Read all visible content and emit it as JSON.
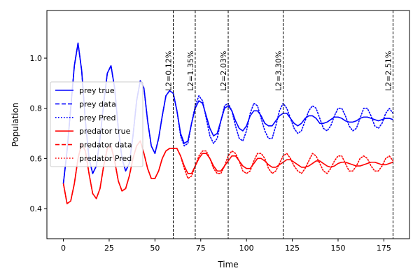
{
  "chart_data": {
    "type": "line",
    "title": "",
    "xlabel": "Time",
    "ylabel": "Population",
    "xlim": [
      -9,
      189
    ],
    "ylim": [
      0.28,
      1.19
    ],
    "xticks": [
      0,
      25,
      50,
      75,
      100,
      125,
      150,
      175
    ],
    "yticks": [
      0.4,
      0.6,
      0.8,
      1.0
    ],
    "xtick_labels": [
      "0",
      "25",
      "50",
      "75",
      "100",
      "125",
      "150",
      "175"
    ],
    "ytick_labels": [
      "0.4",
      "0.6",
      "0.8",
      "1.0"
    ],
    "legend_position": "center-left",
    "series": [
      {
        "name": "prey true",
        "color": "#0000ff",
        "style": "solid",
        "x": [
          0,
          2,
          4,
          6,
          8,
          10,
          12,
          14,
          16,
          18,
          20,
          22,
          24,
          26,
          28,
          30,
          32,
          34,
          36,
          38,
          40,
          42,
          44,
          46,
          48,
          50,
          52,
          54,
          56,
          58,
          60,
          62,
          64,
          66,
          68,
          70,
          72,
          74,
          76,
          78,
          80,
          82,
          84,
          86,
          88,
          90,
          92,
          94,
          96,
          98,
          100,
          102,
          104,
          106,
          108,
          110,
          112,
          114,
          116,
          118,
          120,
          122,
          124,
          126,
          128,
          130,
          132,
          134,
          136,
          138,
          140,
          142,
          144,
          146,
          148,
          150,
          152,
          154,
          156,
          158,
          160,
          162,
          164,
          166,
          168,
          170,
          172,
          174,
          176,
          178,
          180
        ],
        "y": [
          0.5,
          0.63,
          0.8,
          0.97,
          1.06,
          0.95,
          0.75,
          0.6,
          0.54,
          0.57,
          0.68,
          0.82,
          0.94,
          0.97,
          0.88,
          0.72,
          0.6,
          0.55,
          0.58,
          0.69,
          0.83,
          0.91,
          0.88,
          0.75,
          0.65,
          0.62,
          0.68,
          0.77,
          0.85,
          0.87,
          0.86,
          0.79,
          0.7,
          0.66,
          0.67,
          0.74,
          0.8,
          0.83,
          0.82,
          0.77,
          0.72,
          0.69,
          0.7,
          0.75,
          0.8,
          0.81,
          0.79,
          0.75,
          0.72,
          0.71,
          0.73,
          0.77,
          0.79,
          0.79,
          0.77,
          0.74,
          0.73,
          0.73,
          0.75,
          0.77,
          0.78,
          0.78,
          0.76,
          0.74,
          0.73,
          0.74,
          0.76,
          0.77,
          0.77,
          0.76,
          0.74,
          0.74,
          0.745,
          0.755,
          0.765,
          0.765,
          0.76,
          0.75,
          0.745,
          0.745,
          0.75,
          0.76,
          0.765,
          0.765,
          0.76,
          0.755,
          0.75,
          0.755,
          0.76,
          0.76,
          0.755
        ]
      },
      {
        "name": "prey data",
        "color": "#0000ff",
        "style": "dashed",
        "x": [
          0,
          2,
          4,
          6,
          8,
          10,
          12,
          14,
          16,
          18,
          20,
          22,
          24,
          26,
          28,
          30,
          32,
          34,
          36,
          38,
          40,
          42,
          44,
          46,
          48,
          50,
          52,
          54,
          56,
          58,
          60
        ],
        "y": [
          0.5,
          0.63,
          0.8,
          0.97,
          1.06,
          0.95,
          0.75,
          0.6,
          0.54,
          0.57,
          0.68,
          0.82,
          0.94,
          0.97,
          0.88,
          0.72,
          0.6,
          0.55,
          0.58,
          0.69,
          0.83,
          0.91,
          0.88,
          0.75,
          0.65,
          0.62,
          0.68,
          0.77,
          0.85,
          0.87,
          0.86
        ]
      },
      {
        "name": "prey Pred",
        "color": "#0000ff",
        "style": "dotted",
        "x": [
          60,
          62,
          64,
          66,
          68,
          70,
          72,
          74,
          76,
          78,
          80,
          82,
          84,
          86,
          88,
          90,
          92,
          94,
          96,
          98,
          100,
          102,
          104,
          106,
          108,
          110,
          112,
          114,
          116,
          118,
          120,
          122,
          124,
          126,
          128,
          130,
          132,
          134,
          136,
          138,
          140,
          142,
          144,
          146,
          148,
          150,
          152,
          154,
          156,
          158,
          160,
          162,
          164,
          166,
          168,
          170,
          172,
          174,
          176,
          178,
          180
        ],
        "y": [
          0.86,
          0.79,
          0.69,
          0.65,
          0.66,
          0.74,
          0.81,
          0.85,
          0.83,
          0.76,
          0.69,
          0.66,
          0.68,
          0.75,
          0.81,
          0.82,
          0.79,
          0.73,
          0.68,
          0.67,
          0.71,
          0.78,
          0.82,
          0.81,
          0.76,
          0.71,
          0.68,
          0.68,
          0.73,
          0.79,
          0.82,
          0.8,
          0.76,
          0.72,
          0.7,
          0.71,
          0.75,
          0.79,
          0.81,
          0.8,
          0.76,
          0.72,
          0.71,
          0.73,
          0.77,
          0.8,
          0.8,
          0.77,
          0.73,
          0.71,
          0.72,
          0.76,
          0.8,
          0.8,
          0.77,
          0.73,
          0.72,
          0.74,
          0.78,
          0.8,
          0.78
        ]
      },
      {
        "name": "predator true",
        "color": "#ff0000",
        "style": "solid",
        "x": [
          0,
          2,
          4,
          6,
          8,
          10,
          12,
          14,
          16,
          18,
          20,
          22,
          24,
          26,
          28,
          30,
          32,
          34,
          36,
          38,
          40,
          42,
          44,
          46,
          48,
          50,
          52,
          54,
          56,
          58,
          60,
          62,
          64,
          66,
          68,
          70,
          72,
          74,
          76,
          78,
          80,
          82,
          84,
          86,
          88,
          90,
          92,
          94,
          96,
          98,
          100,
          102,
          104,
          106,
          108,
          110,
          112,
          114,
          116,
          118,
          120,
          122,
          124,
          126,
          128,
          130,
          132,
          134,
          136,
          138,
          140,
          142,
          144,
          146,
          148,
          150,
          152,
          154,
          156,
          158,
          160,
          162,
          164,
          166,
          168,
          170,
          172,
          174,
          176,
          178,
          180
        ],
        "y": [
          0.5,
          0.42,
          0.43,
          0.5,
          0.6,
          0.66,
          0.63,
          0.54,
          0.46,
          0.44,
          0.48,
          0.57,
          0.64,
          0.65,
          0.59,
          0.51,
          0.47,
          0.48,
          0.53,
          0.6,
          0.65,
          0.67,
          0.62,
          0.56,
          0.52,
          0.52,
          0.55,
          0.6,
          0.63,
          0.64,
          0.64,
          0.64,
          0.61,
          0.57,
          0.54,
          0.54,
          0.57,
          0.6,
          0.62,
          0.62,
          0.6,
          0.57,
          0.55,
          0.55,
          0.57,
          0.59,
          0.61,
          0.61,
          0.59,
          0.57,
          0.56,
          0.56,
          0.58,
          0.6,
          0.6,
          0.59,
          0.575,
          0.565,
          0.565,
          0.575,
          0.585,
          0.595,
          0.595,
          0.585,
          0.575,
          0.565,
          0.565,
          0.57,
          0.58,
          0.59,
          0.59,
          0.58,
          0.57,
          0.565,
          0.57,
          0.58,
          0.585,
          0.585,
          0.58,
          0.575,
          0.57,
          0.57,
          0.575,
          0.58,
          0.585,
          0.585,
          0.58,
          0.575,
          0.575,
          0.58,
          0.585
        ]
      },
      {
        "name": "predator data",
        "color": "#ff0000",
        "style": "dashed",
        "x": [
          0,
          2,
          4,
          6,
          8,
          10,
          12,
          14,
          16,
          18,
          20,
          22,
          24,
          26,
          28,
          30,
          32,
          34,
          36,
          38,
          40,
          42,
          44,
          46,
          48,
          50,
          52,
          54,
          56,
          58,
          60
        ],
        "y": [
          0.5,
          0.42,
          0.43,
          0.5,
          0.6,
          0.66,
          0.63,
          0.54,
          0.46,
          0.44,
          0.48,
          0.57,
          0.64,
          0.65,
          0.59,
          0.51,
          0.47,
          0.48,
          0.53,
          0.6,
          0.65,
          0.67,
          0.62,
          0.56,
          0.52,
          0.52,
          0.55,
          0.6,
          0.63,
          0.64,
          0.64
        ]
      },
      {
        "name": "predator Pred",
        "color": "#ff0000",
        "style": "dotted",
        "x": [
          60,
          62,
          64,
          66,
          68,
          70,
          72,
          74,
          76,
          78,
          80,
          82,
          84,
          86,
          88,
          90,
          92,
          94,
          96,
          98,
          100,
          102,
          104,
          106,
          108,
          110,
          112,
          114,
          116,
          118,
          120,
          122,
          124,
          126,
          128,
          130,
          132,
          134,
          136,
          138,
          140,
          142,
          144,
          146,
          148,
          150,
          152,
          154,
          156,
          158,
          160,
          162,
          164,
          166,
          168,
          170,
          172,
          174,
          176,
          178,
          180
        ],
        "y": [
          0.64,
          0.64,
          0.61,
          0.56,
          0.52,
          0.53,
          0.57,
          0.61,
          0.63,
          0.63,
          0.6,
          0.56,
          0.54,
          0.54,
          0.57,
          0.61,
          0.63,
          0.62,
          0.59,
          0.55,
          0.54,
          0.55,
          0.59,
          0.62,
          0.62,
          0.6,
          0.56,
          0.54,
          0.55,
          0.58,
          0.61,
          0.62,
          0.6,
          0.57,
          0.55,
          0.54,
          0.56,
          0.59,
          0.62,
          0.61,
          0.58,
          0.55,
          0.54,
          0.56,
          0.59,
          0.61,
          0.61,
          0.58,
          0.55,
          0.55,
          0.57,
          0.6,
          0.61,
          0.6,
          0.57,
          0.55,
          0.55,
          0.57,
          0.6,
          0.61,
          0.59
        ]
      }
    ],
    "vlines": [
      {
        "x": 60,
        "label": "L2=0.12%"
      },
      {
        "x": 72,
        "label": "L2=1.35%"
      },
      {
        "x": 90,
        "label": "L2=2.03%"
      },
      {
        "x": 120,
        "label": "L2=3.30%"
      },
      {
        "x": 180,
        "label": "L2=2.51%"
      }
    ]
  }
}
